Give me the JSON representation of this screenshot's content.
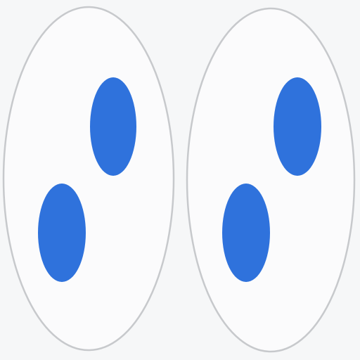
{
  "figure": {
    "background_color": "#f6f7f8",
    "outline_color": "#c7c9cc",
    "dot_color": "#2f72dc",
    "groups": [
      {
        "name": "left-oval",
        "dots": 2
      },
      {
        "name": "right-oval",
        "dots": 2
      }
    ]
  }
}
